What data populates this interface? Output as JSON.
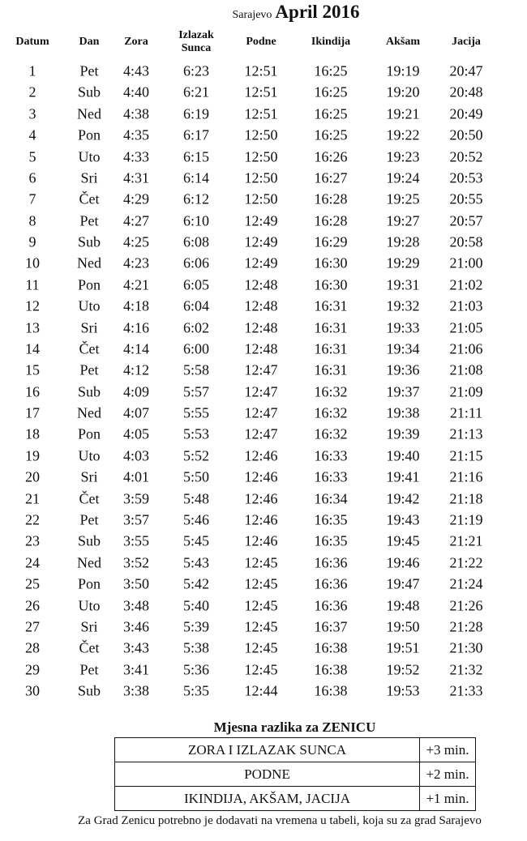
{
  "header": {
    "city": "Sarajevo",
    "month": "April 2016"
  },
  "columns": [
    "Datum",
    "Dan",
    "Zora",
    "Izlazak Sunca",
    "Podne",
    "Ikindija",
    "Akšam",
    "Jacija"
  ],
  "rows": [
    [
      "1",
      "Pet",
      "4:43",
      "6:23",
      "12:51",
      "16:25",
      "19:19",
      "20:47"
    ],
    [
      "2",
      "Sub",
      "4:40",
      "6:21",
      "12:51",
      "16:25",
      "19:20",
      "20:48"
    ],
    [
      "3",
      "Ned",
      "4:38",
      "6:19",
      "12:51",
      "16:25",
      "19:21",
      "20:49"
    ],
    [
      "4",
      "Pon",
      "4:35",
      "6:17",
      "12:50",
      "16:25",
      "19:22",
      "20:50"
    ],
    [
      "5",
      "Uto",
      "4:33",
      "6:15",
      "12:50",
      "16:26",
      "19:23",
      "20:52"
    ],
    [
      "6",
      "Sri",
      "4:31",
      "6:14",
      "12:50",
      "16:27",
      "19:24",
      "20:53"
    ],
    [
      "7",
      "Čet",
      "4:29",
      "6:12",
      "12:50",
      "16:28",
      "19:25",
      "20:55"
    ],
    [
      "8",
      "Pet",
      "4:27",
      "6:10",
      "12:49",
      "16:28",
      "19:27",
      "20:57"
    ],
    [
      "9",
      "Sub",
      "4:25",
      "6:08",
      "12:49",
      "16:29",
      "19:28",
      "20:58"
    ],
    [
      "10",
      "Ned",
      "4:23",
      "6:06",
      "12:49",
      "16:30",
      "19:29",
      "21:00"
    ],
    [
      "11",
      "Pon",
      "4:21",
      "6:05",
      "12:48",
      "16:30",
      "19:31",
      "21:02"
    ],
    [
      "12",
      "Uto",
      "4:18",
      "6:04",
      "12:48",
      "16:31",
      "19:32",
      "21:03"
    ],
    [
      "13",
      "Sri",
      "4:16",
      "6:02",
      "12:48",
      "16:31",
      "19:33",
      "21:05"
    ],
    [
      "14",
      "Čet",
      "4:14",
      "6:00",
      "12:48",
      "16:31",
      "19:34",
      "21:06"
    ],
    [
      "15",
      "Pet",
      "4:12",
      "5:58",
      "12:47",
      "16:31",
      "19:36",
      "21:08"
    ],
    [
      "16",
      "Sub",
      "4:09",
      "5:57",
      "12:47",
      "16:32",
      "19:37",
      "21:09"
    ],
    [
      "17",
      "Ned",
      "4:07",
      "5:55",
      "12:47",
      "16:32",
      "19:38",
      "21:11"
    ],
    [
      "18",
      "Pon",
      "4:05",
      "5:53",
      "12:47",
      "16:32",
      "19:39",
      "21:13"
    ],
    [
      "19",
      "Uto",
      "4:03",
      "5:52",
      "12:46",
      "16:33",
      "19:40",
      "21:15"
    ],
    [
      "20",
      "Sri",
      "4:01",
      "5:50",
      "12:46",
      "16:33",
      "19:41",
      "21:16"
    ],
    [
      "21",
      "Čet",
      "3:59",
      "5:48",
      "12:46",
      "16:34",
      "19:42",
      "21:18"
    ],
    [
      "22",
      "Pet",
      "3:57",
      "5:46",
      "12:46",
      "16:35",
      "19:43",
      "21:19"
    ],
    [
      "23",
      "Sub",
      "3:55",
      "5:45",
      "12:46",
      "16:35",
      "19:45",
      "21:21"
    ],
    [
      "24",
      "Ned",
      "3:52",
      "5:43",
      "12:45",
      "16:36",
      "19:46",
      "21:22"
    ],
    [
      "25",
      "Pon",
      "3:50",
      "5:42",
      "12:45",
      "16:36",
      "19:47",
      "21:24"
    ],
    [
      "26",
      "Uto",
      "3:48",
      "5:40",
      "12:45",
      "16:36",
      "19:48",
      "21:26"
    ],
    [
      "27",
      "Sri",
      "3:46",
      "5:39",
      "12:45",
      "16:37",
      "19:50",
      "21:28"
    ],
    [
      "28",
      "Čet",
      "3:43",
      "5:38",
      "12:45",
      "16:38",
      "19:51",
      "21:30"
    ],
    [
      "29",
      "Pet",
      "3:41",
      "5:36",
      "12:45",
      "16:38",
      "19:52",
      "21:32"
    ],
    [
      "30",
      "Sub",
      "3:38",
      "5:35",
      "12:44",
      "16:38",
      "19:53",
      "21:33"
    ]
  ],
  "zenica": {
    "title": "Mjesna razlika za ZENICU",
    "rows": [
      {
        "label": "ZORA I IZLAZAK SUNCA",
        "value": "+3 min."
      },
      {
        "label": "PODNE",
        "value": "+2 min."
      },
      {
        "label": "IKINDIJA, AKŠAM, JACIJA",
        "value": "+1 min."
      }
    ],
    "note": "Za Grad Zenicu potrebno je dodavati na vremena u tabeli, koja su za grad Sarajevo"
  }
}
